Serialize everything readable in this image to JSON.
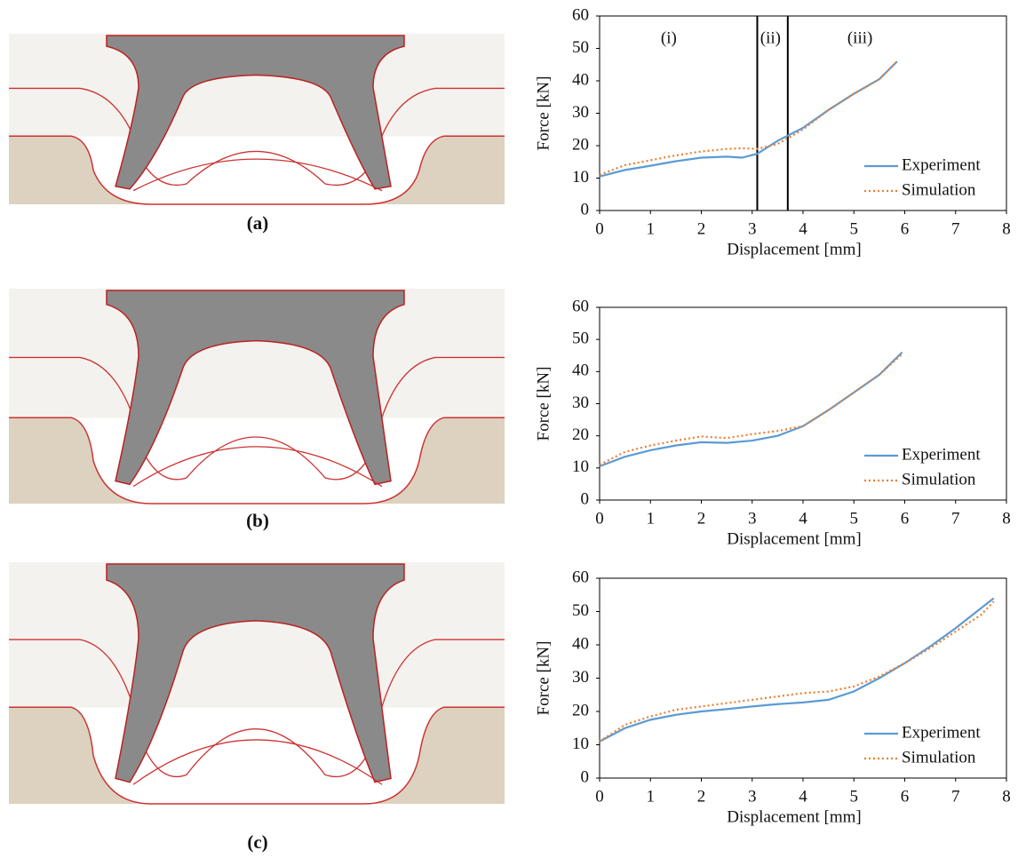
{
  "chart_data": [
    {
      "type": "line",
      "panel_label": "(a)",
      "xlabel": "Displacement [mm]",
      "ylabel": "Force [kN]",
      "xlim": [
        0,
        8
      ],
      "xticks": [
        0,
        1,
        2,
        3,
        4,
        5,
        6,
        7,
        8
      ],
      "ylim": [
        0,
        60
      ],
      "yticks": [
        0,
        10,
        20,
        30,
        40,
        50,
        60
      ],
      "legend": "lower right",
      "vlines": [
        3.1,
        3.7
      ],
      "annotations": [
        "(i)",
        "(ii)",
        "(iii)"
      ],
      "x": [
        0,
        0.5,
        1,
        1.5,
        2,
        2.5,
        2.8,
        3.1,
        3.5,
        4,
        4.5,
        5,
        5.5,
        5.85
      ],
      "series": [
        {
          "name": "Experiment",
          "color": "#5b9bd5",
          "values": [
            10.5,
            12.5,
            13.8,
            15.2,
            16.3,
            16.6,
            16.3,
            17.5,
            21.5,
            25.5,
            31,
            36,
            40.5,
            46
          ]
        },
        {
          "name": "Simulation",
          "color": "#ed7d31",
          "dashed": true,
          "values": [
            11,
            14,
            15.5,
            17,
            18.2,
            19,
            19.2,
            19,
            20.5,
            25,
            31,
            36,
            40.5,
            46
          ]
        }
      ]
    },
    {
      "type": "line",
      "panel_label": "(b)",
      "xlabel": "Displacement [mm]",
      "ylabel": "Force [kN]",
      "xlim": [
        0,
        8
      ],
      "xticks": [
        0,
        1,
        2,
        3,
        4,
        5,
        6,
        7,
        8
      ],
      "ylim": [
        0,
        60
      ],
      "yticks": [
        0,
        10,
        20,
        30,
        40,
        50,
        60
      ],
      "legend": "lower right",
      "x": [
        0,
        0.5,
        1,
        1.5,
        2,
        2.5,
        3,
        3.5,
        4,
        4.5,
        5,
        5.5,
        5.95
      ],
      "series": [
        {
          "name": "Experiment",
          "color": "#5b9bd5",
          "values": [
            10.5,
            13.5,
            15.5,
            17,
            18,
            17.8,
            18.5,
            20,
            23,
            28,
            33.5,
            39,
            46
          ]
        },
        {
          "name": "Simulation",
          "color": "#ed7d31",
          "dashed": true,
          "values": [
            11,
            15,
            17,
            18.5,
            19.8,
            19.3,
            20.5,
            21.5,
            23,
            28,
            33.5,
            39,
            45.5
          ]
        }
      ]
    },
    {
      "type": "line",
      "panel_label": "(c)",
      "xlabel": "Displacement [mm]",
      "ylabel": "Force [kN]",
      "xlim": [
        0,
        8
      ],
      "xticks": [
        0,
        1,
        2,
        3,
        4,
        5,
        6,
        7,
        8
      ],
      "ylim": [
        0,
        60
      ],
      "yticks": [
        0,
        10,
        20,
        30,
        40,
        50,
        60
      ],
      "legend": "lower right",
      "x": [
        0,
        0.5,
        1,
        1.5,
        2,
        2.5,
        3,
        3.5,
        4,
        4.5,
        5,
        5.5,
        6,
        6.5,
        7,
        7.5,
        7.75
      ],
      "series": [
        {
          "name": "Experiment",
          "color": "#5b9bd5",
          "values": [
            11,
            15,
            17.5,
            19,
            20,
            20.7,
            21.5,
            22.2,
            22.7,
            23.5,
            26,
            30,
            34.5,
            39.5,
            45,
            51,
            54
          ]
        },
        {
          "name": "Simulation",
          "color": "#ed7d31",
          "dashed": true,
          "values": [
            11,
            16,
            18.5,
            20.5,
            21.5,
            22.5,
            23.5,
            24.5,
            25.5,
            26,
            27.5,
            30.5,
            34.5,
            39,
            44,
            49,
            53
          ]
        }
      ]
    }
  ]
}
